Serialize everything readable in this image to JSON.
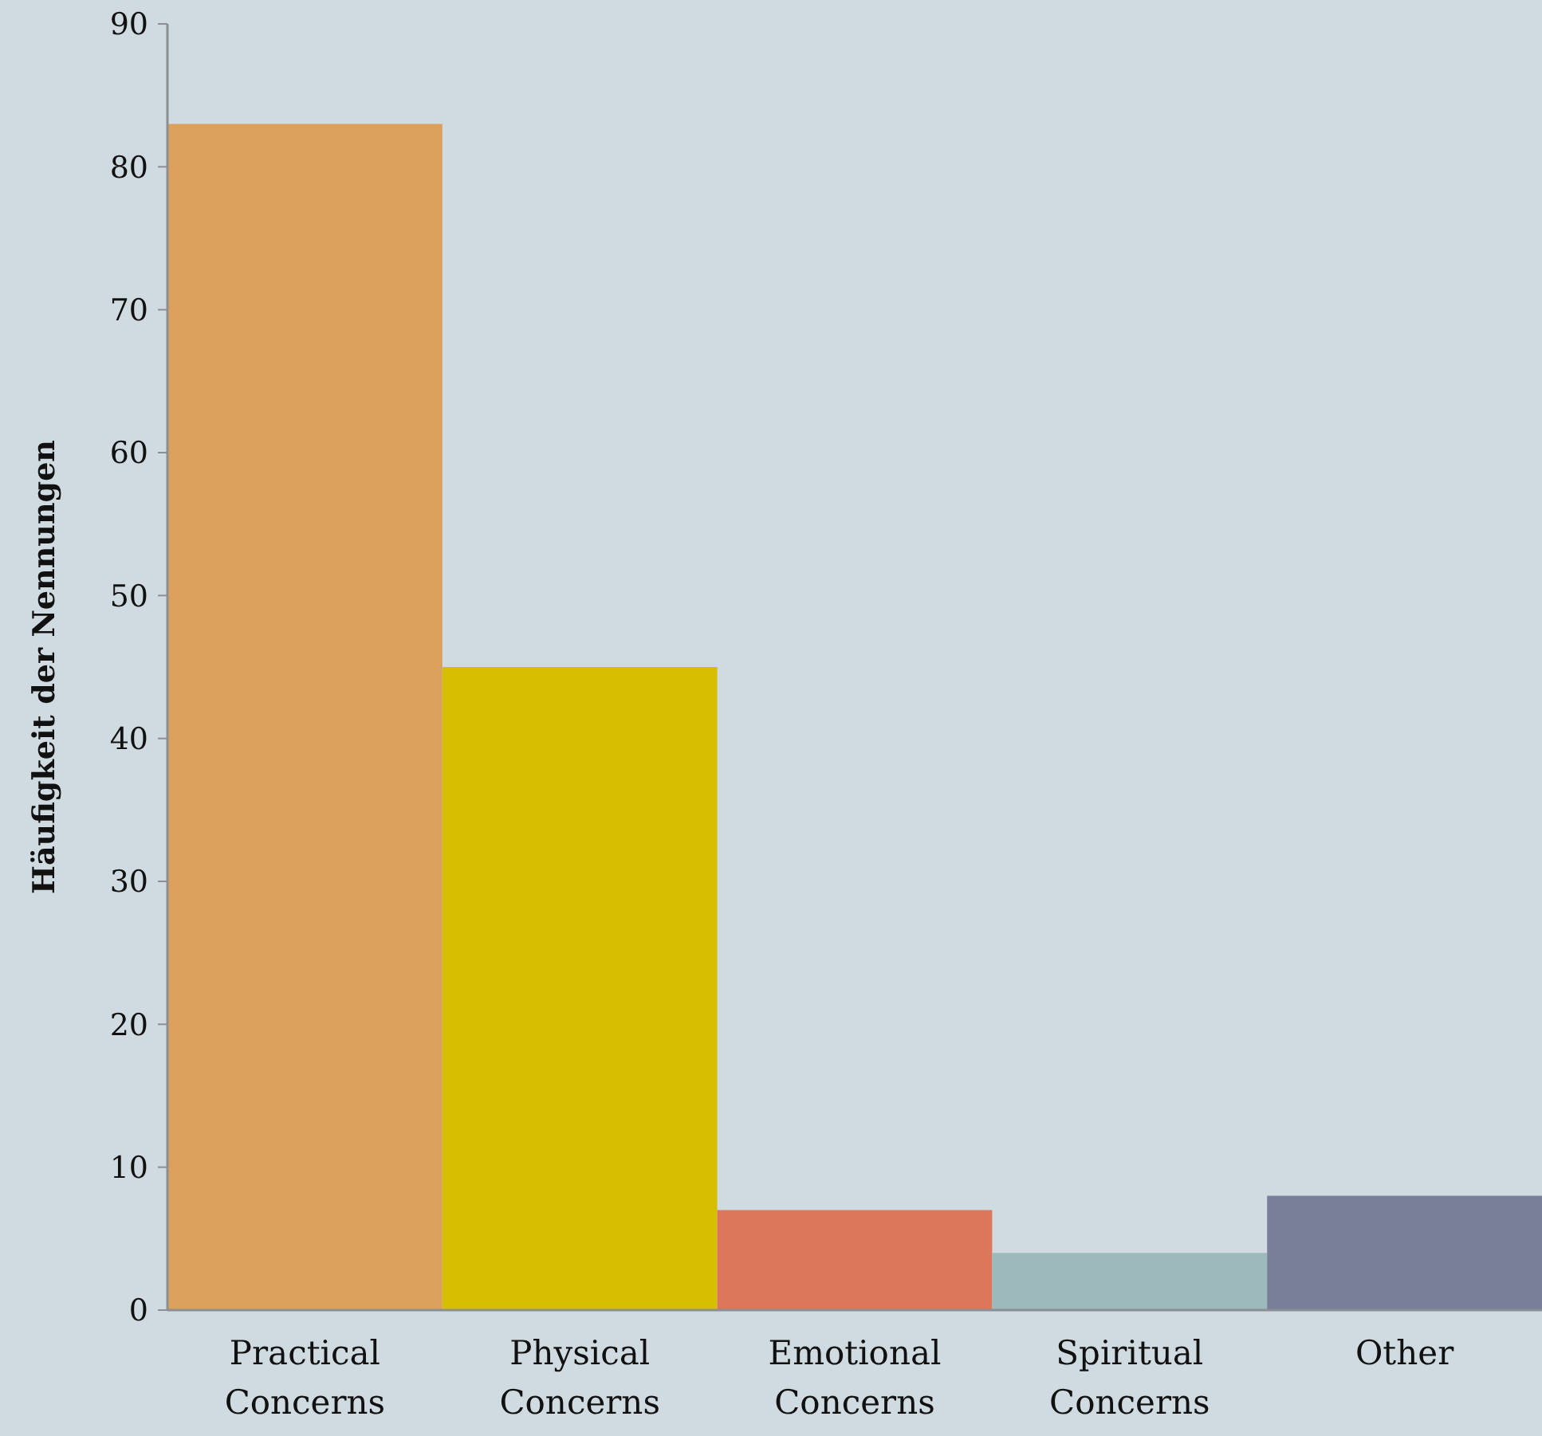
{
  "chart_data": {
    "type": "bar",
    "ylabel": "Häufigkeit der Nennungen",
    "categories": [
      "Practical Concerns",
      "Physical Concerns",
      "Emotional Concerns",
      "Spiritual Concerns",
      "Other"
    ],
    "values": [
      83,
      45,
      7,
      4,
      8
    ],
    "colors": [
      "#dba05c",
      "#d6bf00",
      "#dc775b",
      "#9db9bb",
      "#7a7f99"
    ],
    "ylim": [
      0,
      90
    ],
    "yticks": [
      0,
      10,
      20,
      30,
      40,
      50,
      60,
      70,
      80,
      90
    ],
    "grid": false
  }
}
